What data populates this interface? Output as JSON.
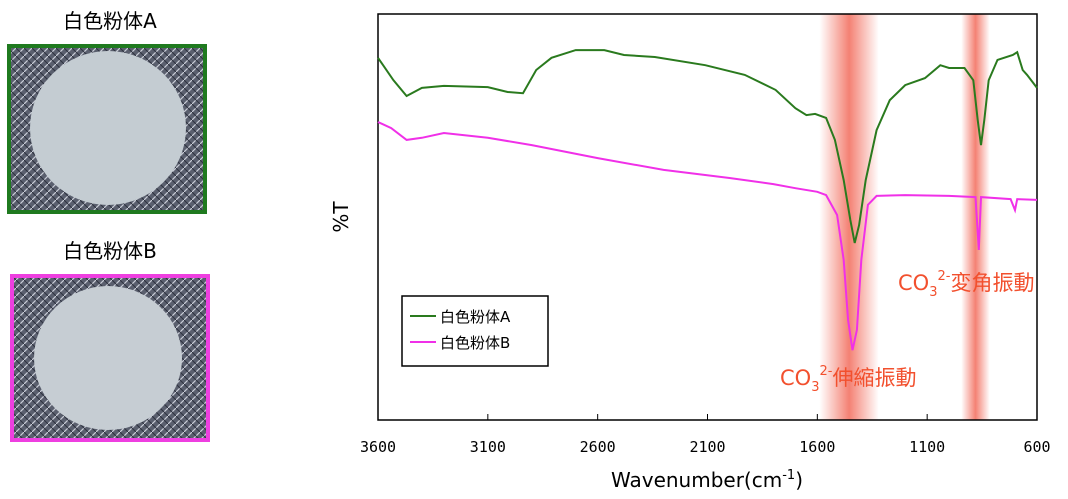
{
  "samples": [
    {
      "title": "白色粉体A"
    },
    {
      "title": "白色粉体B"
    }
  ],
  "chart_data": {
    "type": "line",
    "y_label": "%T",
    "x_label": {
      "parts": [
        "Wavenumber(cm",
        "-1",
        ")"
      ]
    },
    "xlim": [
      3600,
      600
    ],
    "xticks": [
      3600,
      3100,
      2600,
      2100,
      1600,
      1100,
      600
    ],
    "ylim": [
      0,
      100
    ],
    "legend": "lower-left",
    "highlight_bands": [
      [
        1590,
        1320
      ],
      [
        945,
        815
      ]
    ],
    "annotations": [
      {
        "parts": [
          "CO",
          "3",
          "2-",
          "伸縮振動"
        ]
      },
      {
        "parts": [
          "CO",
          "3",
          "2-",
          "変角振動"
        ]
      }
    ],
    "series": [
      {
        "name": "白色粉体A",
        "color": "#2a7a1e",
        "x": [
          3600,
          3530,
          3470,
          3400,
          3300,
          3100,
          3010,
          2940,
          2880,
          2810,
          2700,
          2570,
          2480,
          2340,
          2110,
          1930,
          1790,
          1700,
          1650,
          1610,
          1560,
          1520,
          1480,
          1450,
          1430,
          1410,
          1380,
          1330,
          1270,
          1200,
          1110,
          1040,
          1000,
          930,
          890,
          870,
          855,
          840,
          820,
          780,
          710,
          690,
          665,
          645,
          600
        ],
        "values": [
          89.2,
          83.7,
          79.8,
          81.8,
          82.3,
          82.0,
          80.8,
          80.5,
          86.2,
          89.2,
          91.1,
          91.1,
          89.9,
          89.4,
          87.4,
          85.0,
          81.3,
          76.8,
          75.1,
          75.4,
          74.4,
          69.0,
          59.1,
          49.3,
          43.6,
          48.0,
          59.1,
          71.4,
          78.8,
          82.5,
          84.2,
          87.4,
          86.7,
          86.7,
          83.7,
          73.9,
          67.7,
          73.9,
          83.7,
          88.7,
          89.9,
          90.6,
          86.2,
          85.0,
          81.8
        ]
      },
      {
        "name": "白色粉体B",
        "color": "#f030e8",
        "x": [
          3600,
          3540,
          3470,
          3400,
          3300,
          3100,
          2900,
          2600,
          2300,
          2000,
          1800,
          1700,
          1600,
          1560,
          1510,
          1480,
          1460,
          1440,
          1420,
          1400,
          1370,
          1330,
          1200,
          1000,
          880,
          865,
          855,
          720,
          700,
          690,
          600
        ],
        "values": [
          73.4,
          71.9,
          69.0,
          69.5,
          70.7,
          69.5,
          67.7,
          64.5,
          61.6,
          59.6,
          58.1,
          57.1,
          56.2,
          55.4,
          50.5,
          39.4,
          24.6,
          17.2,
          22.2,
          39.4,
          53.0,
          55.2,
          55.4,
          55.2,
          54.9,
          41.9,
          54.9,
          54.4,
          51.7,
          54.4,
          54.2
        ]
      }
    ]
  }
}
